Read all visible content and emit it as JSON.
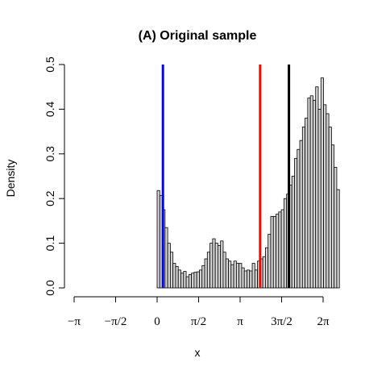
{
  "chart_data": {
    "type": "bar",
    "title": "(A) Original sample",
    "xlabel": "x",
    "ylabel": "Density",
    "xlim": [
      -3.14159,
      6.28319
    ],
    "ylim": [
      0,
      0.5
    ],
    "x_ticks": [
      {
        "value": -3.14159,
        "label": "−π"
      },
      {
        "value": -1.5708,
        "label": "−π/2"
      },
      {
        "value": 0,
        "label": "0"
      },
      {
        "value": 1.5708,
        "label": "π/2"
      },
      {
        "value": 3.14159,
        "label": "π"
      },
      {
        "value": 4.71239,
        "label": "3π/2"
      },
      {
        "value": 6.28319,
        "label": "2π"
      }
    ],
    "y_ticks": [
      {
        "value": 0.0,
        "label": "0.0"
      },
      {
        "value": 0.1,
        "label": "0.1"
      },
      {
        "value": 0.2,
        "label": "0.2"
      },
      {
        "value": 0.3,
        "label": "0.3"
      },
      {
        "value": 0.4,
        "label": "0.4"
      },
      {
        "value": 0.5,
        "label": "0.5"
      }
    ],
    "bin_start": 0,
    "bin_width": 0.1,
    "values": [
      0.218,
      0.207,
      0.175,
      0.135,
      0.1,
      0.08,
      0.055,
      0.048,
      0.04,
      0.033,
      0.037,
      0.025,
      0.03,
      0.033,
      0.035,
      0.036,
      0.04,
      0.05,
      0.065,
      0.08,
      0.1,
      0.11,
      0.1,
      0.095,
      0.105,
      0.08,
      0.065,
      0.06,
      0.052,
      0.06,
      0.055,
      0.055,
      0.045,
      0.038,
      0.04,
      0.038,
      0.055,
      0.04,
      0.06,
      0.065,
      0.07,
      0.09,
      0.12,
      0.16,
      0.16,
      0.165,
      0.17,
      0.175,
      0.2,
      0.21,
      0.23,
      0.25,
      0.29,
      0.31,
      0.33,
      0.36,
      0.38,
      0.425,
      0.43,
      0.42,
      0.45,
      0.4,
      0.47,
      0.41,
      0.39,
      0.36,
      0.32,
      0.27,
      0.22
    ],
    "bar_fill": "#d3d3d3",
    "bar_stroke": "#000000",
    "vlines": [
      {
        "x": 0.22,
        "color": "#0000ff"
      },
      {
        "x": 3.9,
        "color": "#ff0000"
      },
      {
        "x": 4.99,
        "color": "#000000"
      }
    ],
    "grid": false
  }
}
